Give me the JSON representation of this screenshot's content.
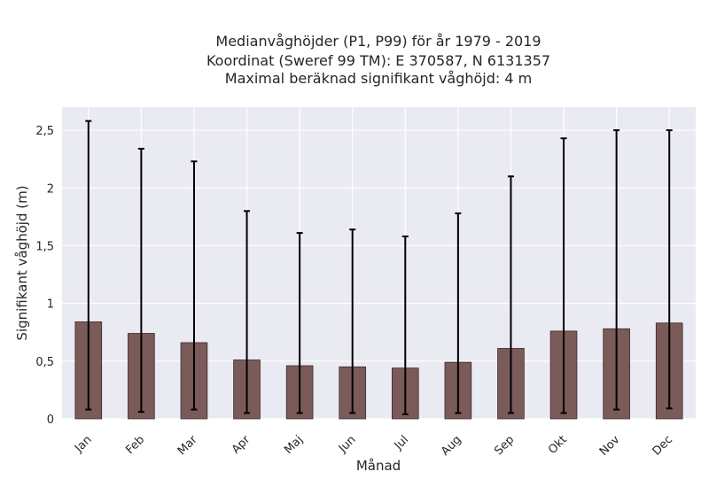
{
  "chart_data": {
    "type": "bar",
    "title_lines": [
      "Medianvåghöjder (P1, P99) för år 1979 - 2019",
      "Koordinat (Sweref 99 TM): E 370587, N 6131357",
      "Maximal beräknad signifikant våghöjd: 4 m"
    ],
    "xlabel": "Månad",
    "ylabel": "Signifikant våghöjd (m)",
    "categories": [
      "Jan",
      "Feb",
      "Mar",
      "Apr",
      "Maj",
      "Jun",
      "Jul",
      "Aug",
      "Sep",
      "Okt",
      "Nov",
      "Dec"
    ],
    "values": [
      0.84,
      0.74,
      0.66,
      0.51,
      0.46,
      0.45,
      0.44,
      0.49,
      0.61,
      0.76,
      0.78,
      0.83
    ],
    "error_low": [
      0.08,
      0.06,
      0.08,
      0.05,
      0.05,
      0.05,
      0.04,
      0.05,
      0.05,
      0.05,
      0.08,
      0.09
    ],
    "error_high": [
      2.58,
      2.34,
      2.23,
      1.8,
      1.61,
      1.64,
      1.58,
      1.78,
      2.1,
      2.43,
      2.5,
      2.5
    ],
    "ylim": [
      0,
      2.7
    ],
    "yticks": [
      0,
      0.5,
      1,
      1.5,
      2,
      2.5
    ],
    "ytick_labels": [
      "0",
      "0,5",
      "1",
      "1,5",
      "2",
      "2,5"
    ],
    "grid": true,
    "colors": {
      "bar": "#7b5a5a",
      "bar_edge": "#3a2a2a",
      "error": "#000000",
      "plot_bg": "#eaeaf2",
      "grid": "#ffffff"
    }
  }
}
